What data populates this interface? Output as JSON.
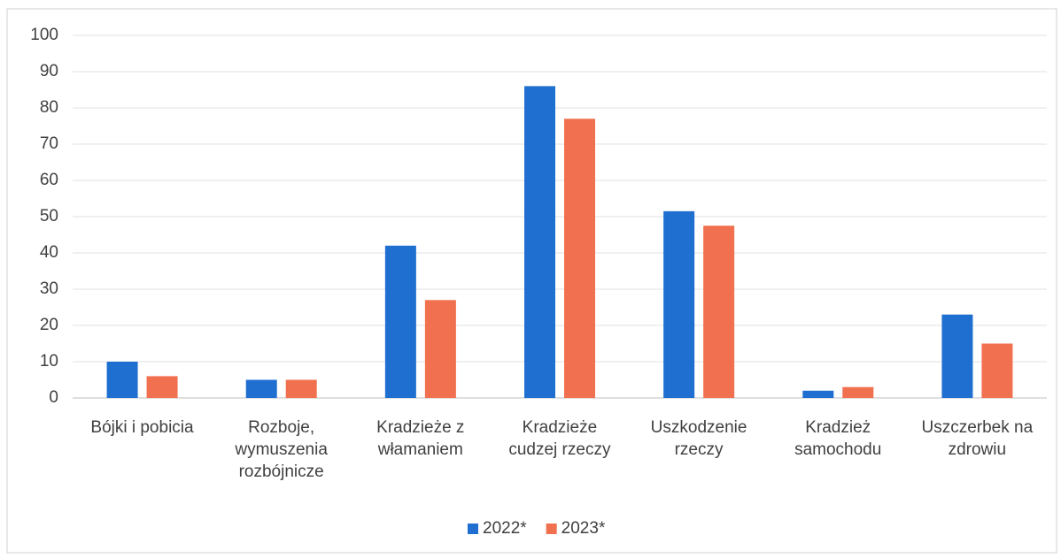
{
  "chart_data": {
    "type": "bar",
    "categories": [
      "Bójki  i pobicia",
      "Rozboje,\nwymuszenia\nrozbójnicze",
      "Kradzieże z\nwłamaniem",
      "Kradzieże\ncudzej rzeczy",
      "Uszkodzenie\nrzeczy",
      "Kradzież\nsamochodu",
      "Uszczerbek na\nzdrowiu"
    ],
    "series": [
      {
        "name": "2022*",
        "color": "#1f6fd0",
        "values": [
          10,
          5,
          42,
          86,
          51.5,
          2,
          23
        ]
      },
      {
        "name": "2023*",
        "color": "#f0704f",
        "values": [
          6,
          5,
          27,
          77,
          47.5,
          3,
          15
        ]
      }
    ],
    "ylim": [
      0,
      100
    ],
    "yticks": [
      0,
      10,
      20,
      30,
      40,
      50,
      60,
      70,
      80,
      90,
      100
    ],
    "grid": true,
    "legend": "bottom"
  }
}
